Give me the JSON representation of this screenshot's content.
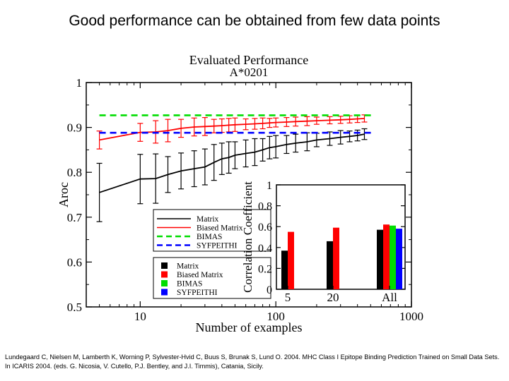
{
  "slide": {
    "title": "Good performance can be obtained from few data points",
    "citation": "Lundegaard C, Nielsen M, Lamberth K, Worning P, Sylvester-Hvid C, Buus S, Brunak S, Lund O. 2004. MHC Class I Epitope Binding Prediction Trained on Small Data Sets. In ICARIS 2004. (eds. G. Nicosia, V. Cutello, P.J. Bentley, and J.I. Timmis), Catania, Sicily."
  },
  "colors": {
    "matrix": "#000000",
    "biased_matrix": "#ff0000",
    "bimas": "#00dd00",
    "syfpeithi": "#0000ff"
  },
  "chart_data": [
    {
      "type": "line",
      "title": "Evaluated Performance",
      "subtitle": "A*0201",
      "xlabel": "Number of examples",
      "ylabel": "Aroc",
      "xscale": "log",
      "xlim": [
        4,
        1000
      ],
      "ylim": [
        0.5,
        1
      ],
      "xticks": [
        "10",
        "100",
        "1000"
      ],
      "yticks": [
        "0.5",
        "0.6",
        "0.7",
        "0.8",
        "0.9",
        "1"
      ],
      "legend_position": "lower-left",
      "series": [
        {
          "name": "Matrix",
          "style": "solid",
          "x": [
            5,
            10,
            13,
            16,
            20,
            25,
            30,
            35,
            40,
            45,
            50,
            60,
            70,
            80,
            90,
            100,
            120,
            140,
            170,
            200,
            250,
            300,
            350,
            400,
            450
          ],
          "y": [
            0.755,
            0.785,
            0.786,
            0.795,
            0.803,
            0.808,
            0.812,
            0.822,
            0.83,
            0.833,
            0.838,
            0.842,
            0.845,
            0.85,
            0.855,
            0.857,
            0.862,
            0.865,
            0.868,
            0.872,
            0.875,
            0.878,
            0.88,
            0.882,
            0.885
          ],
          "err": [
            0.065,
            0.055,
            0.055,
            0.04,
            0.04,
            0.04,
            0.04,
            0.04,
            0.035,
            0.035,
            0.03,
            0.03,
            0.03,
            0.025,
            0.025,
            0.025,
            0.02,
            0.02,
            0.02,
            0.015,
            0.015,
            0.015,
            0.012,
            0.012,
            0.012
          ]
        },
        {
          "name": "Biased Matrix",
          "style": "solid",
          "x": [
            5,
            10,
            13,
            16,
            20,
            25,
            30,
            35,
            40,
            45,
            50,
            60,
            70,
            80,
            90,
            100,
            120,
            140,
            170,
            200,
            250,
            300,
            350,
            400,
            450
          ],
          "y": [
            0.872,
            0.889,
            0.89,
            0.893,
            0.898,
            0.901,
            0.902,
            0.903,
            0.904,
            0.905,
            0.906,
            0.907,
            0.908,
            0.909,
            0.91,
            0.911,
            0.912,
            0.913,
            0.914,
            0.915,
            0.916,
            0.917,
            0.918,
            0.919,
            0.92
          ],
          "err": [
            0.02,
            0.02,
            0.025,
            0.025,
            0.02,
            0.02,
            0.02,
            0.015,
            0.015,
            0.015,
            0.015,
            0.012,
            0.012,
            0.012,
            0.01,
            0.01,
            0.01,
            0.01,
            0.01,
            0.008,
            0.008,
            0.008,
            0.008,
            0.008,
            0.008
          ]
        },
        {
          "name": "BIMAS",
          "style": "dashed",
          "constant": 0.927
        },
        {
          "name": "SYFPEITHI",
          "style": "dashed",
          "constant": 0.888
        }
      ]
    },
    {
      "type": "bar",
      "ylabel": "Correlation Coefficient",
      "ylim": [
        0,
        1
      ],
      "yticks": [
        "0",
        "0.2",
        "0.4",
        "0.6",
        "0.8",
        "1"
      ],
      "categories": [
        "5",
        "20",
        "All"
      ],
      "legend_position": "left",
      "series": [
        {
          "name": "Matrix",
          "values": [
            0.37,
            0.46,
            0.57
          ]
        },
        {
          "name": "Biased Matrix",
          "values": [
            0.55,
            0.59,
            0.62
          ]
        },
        {
          "name": "BIMAS",
          "values": [
            null,
            null,
            0.61
          ]
        },
        {
          "name": "SYFPEITHI",
          "values": [
            null,
            null,
            0.58
          ]
        }
      ]
    }
  ]
}
